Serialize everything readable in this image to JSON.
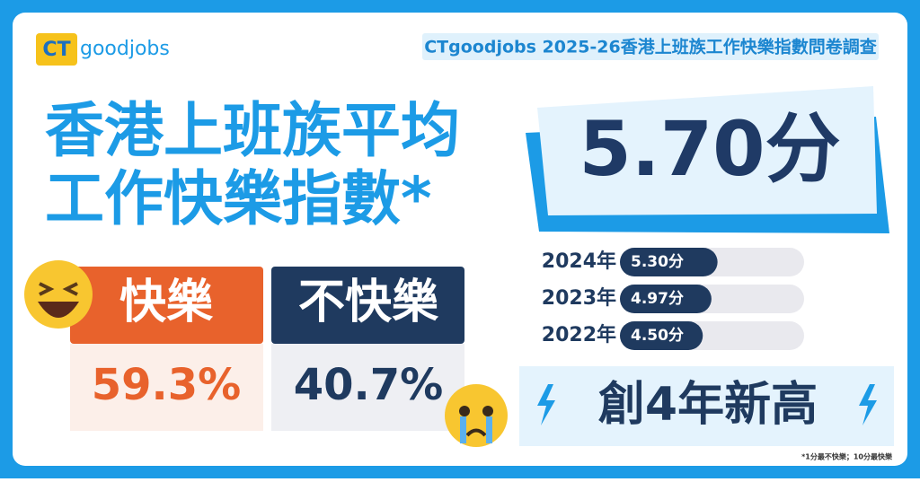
{
  "logo": {
    "mark": "CT",
    "word": "goodjobs"
  },
  "header": {
    "title": "CTgoodjobs 2025-26香港上班族工作快樂指數問卷調查"
  },
  "headline": {
    "line1": "香港上班族平均",
    "line2": "工作快樂指數*"
  },
  "score": "5.70分",
  "happy": {
    "label": "快樂",
    "percent": "59.3%"
  },
  "unhappy": {
    "label": "不快樂",
    "percent": "40.7%"
  },
  "history": [
    {
      "year": "2024年",
      "value": 5.3,
      "value_label": "5.30分"
    },
    {
      "year": "2023年",
      "value": 4.97,
      "value_label": "4.97分"
    },
    {
      "year": "2022年",
      "value": 4.5,
      "value_label": "4.50分"
    }
  ],
  "badge": "創4年新高",
  "footnote": "*1分最不快樂；10分最快樂"
}
